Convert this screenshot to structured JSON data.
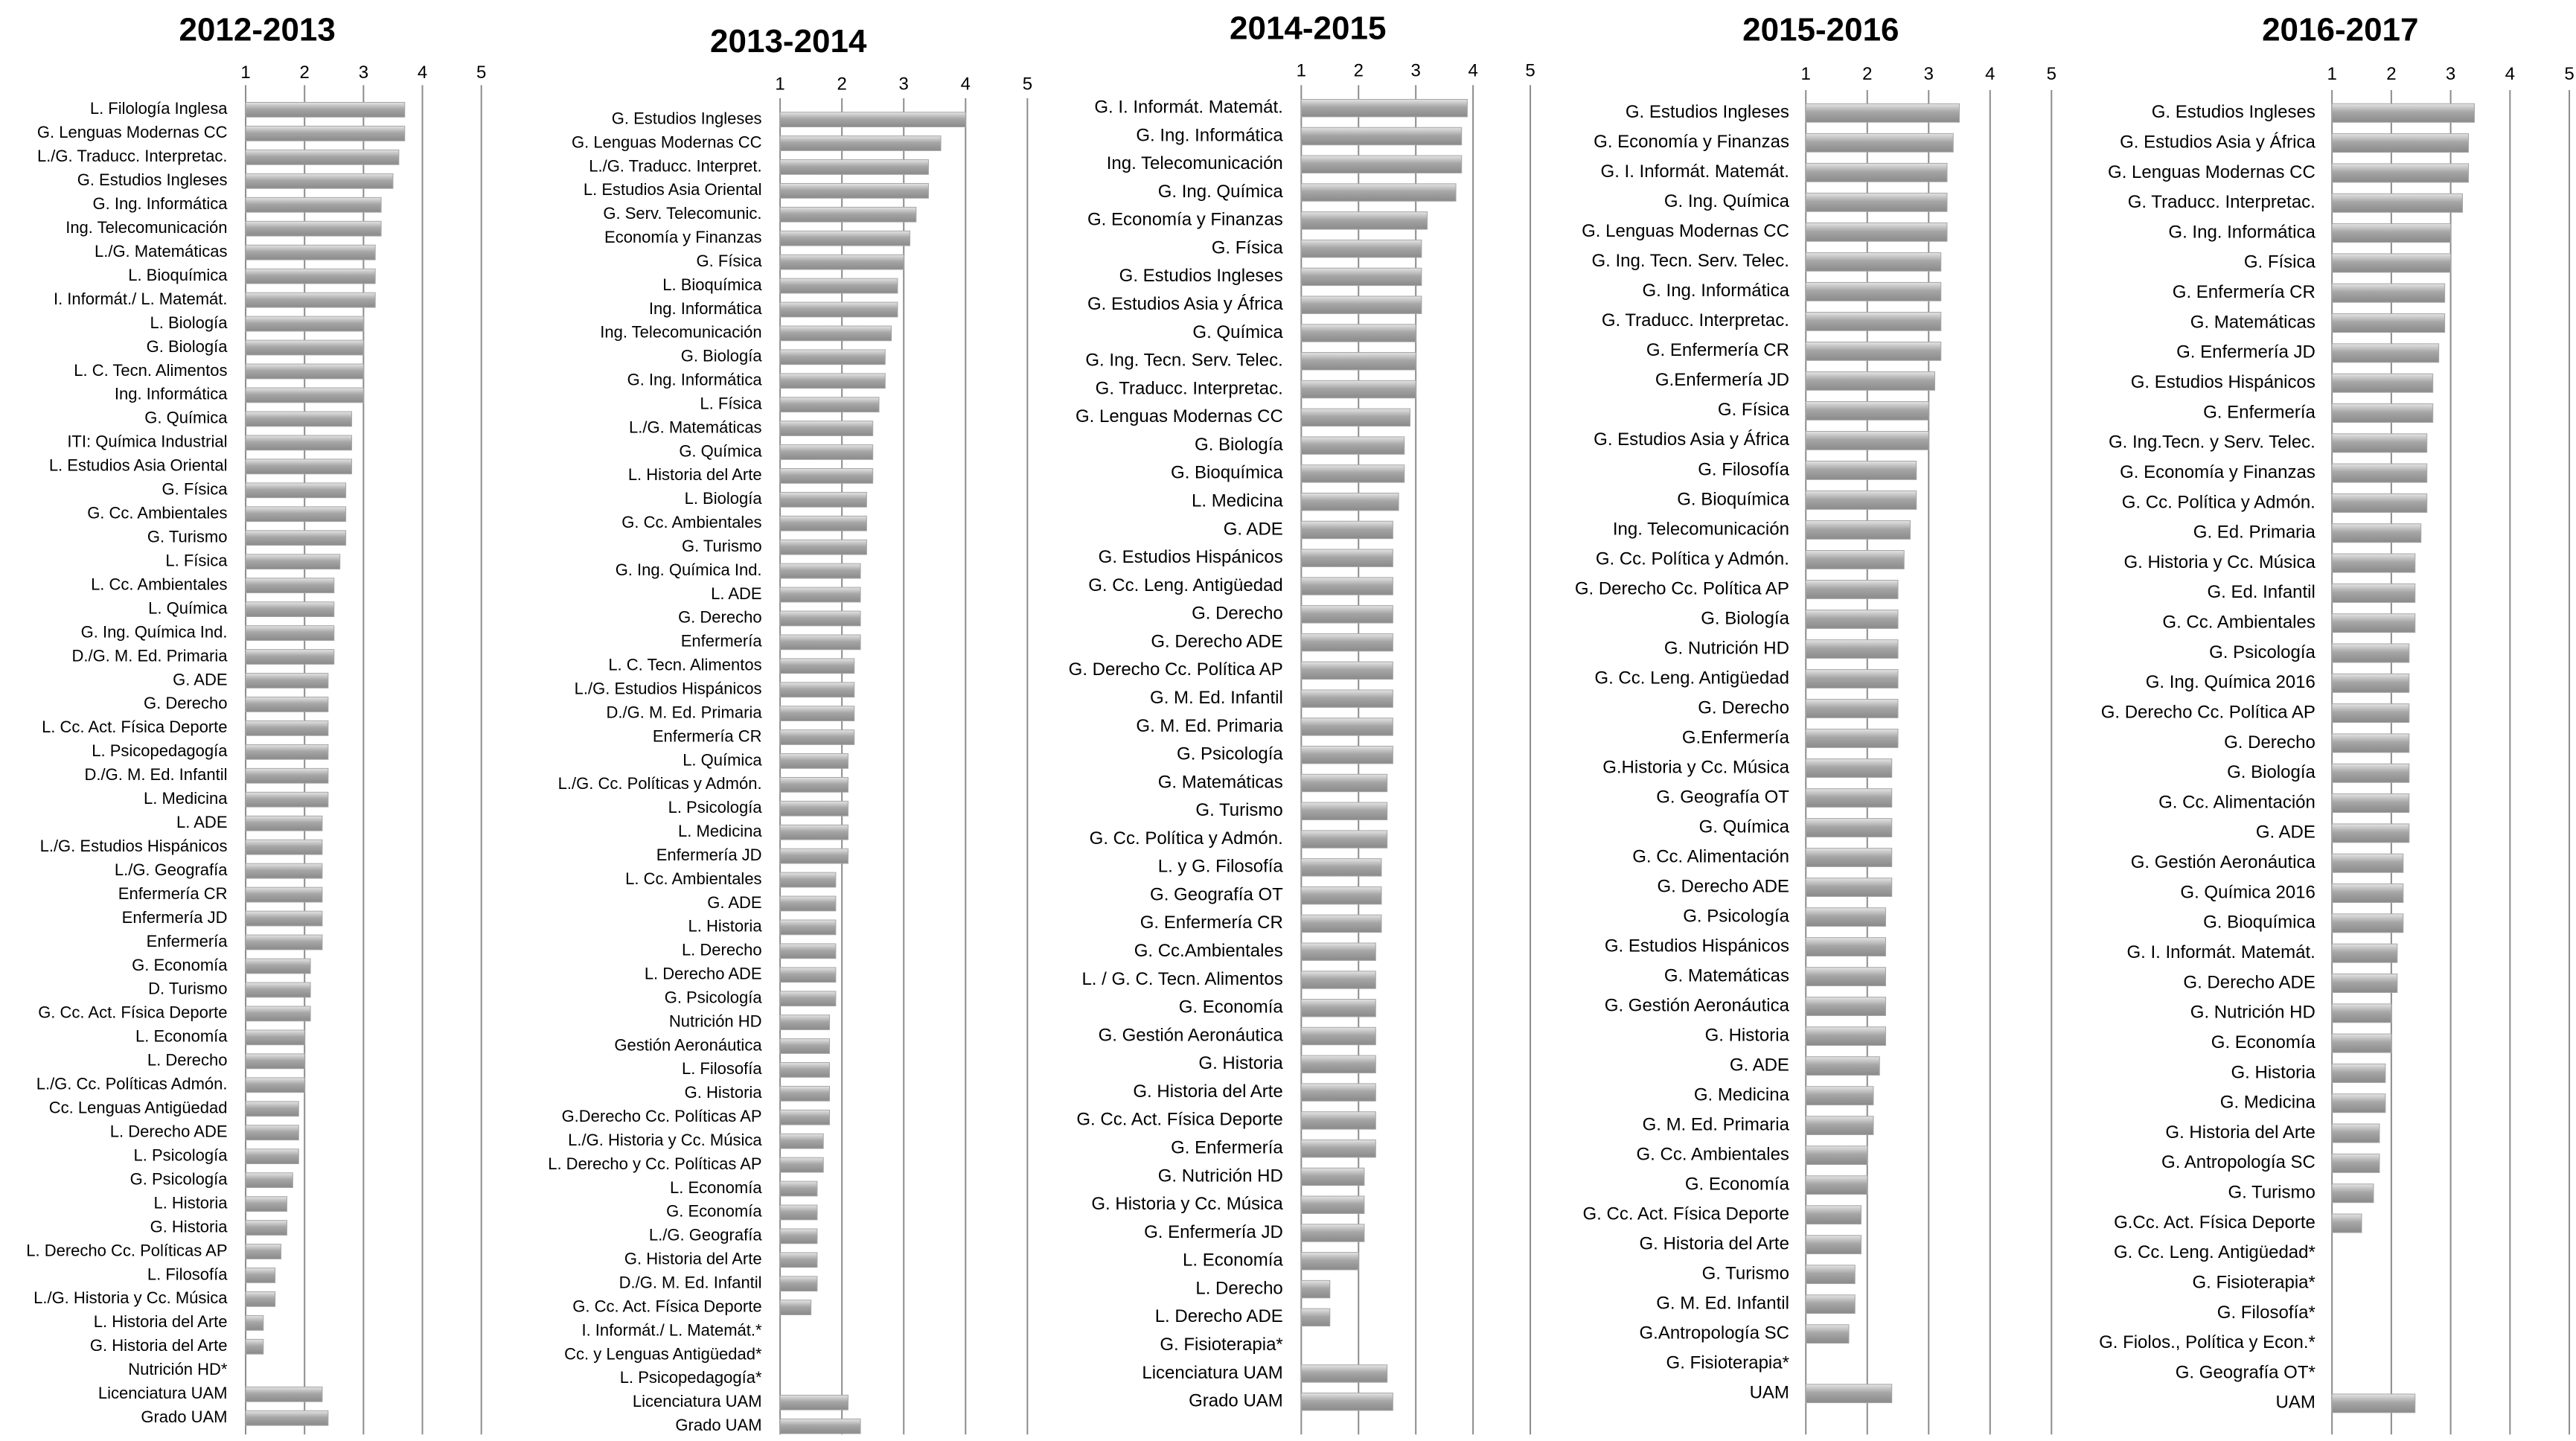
{
  "chart_data": [
    {
      "type": "bar",
      "orientation": "horizontal",
      "title": "2012-2013",
      "color": "#a6a6a6",
      "grid": true,
      "xlim": [
        1,
        5
      ],
      "xticks": [
        1,
        2,
        3,
        4,
        5
      ],
      "categories": [
        "L. Filología Inglesa",
        "G. Lenguas Modernas CC",
        "L./G. Traducc. Interpretac.",
        "G. Estudios Ingleses",
        "G. Ing. Informática",
        "Ing. Telecomunicación",
        "L./G. Matemáticas",
        "L. Bioquímica",
        "I. Informát./ L. Matemát.",
        "L. Biología",
        "G. Biología",
        "L. C. Tecn. Alimentos",
        "Ing. Informática",
        "G. Química",
        "ITI: Química Industrial",
        "L. Estudios Asia Oriental",
        "G. Física",
        "G. Cc. Ambientales",
        "G. Turismo",
        "L. Física",
        "L. Cc. Ambientales",
        "L. Química",
        "G. Ing. Química Ind.",
        "D./G. M. Ed. Primaria",
        "G. ADE",
        "G. Derecho",
        "L. Cc. Act. Física  Deporte",
        "L. Psicopedagogía",
        "D./G. M. Ed. Infantil",
        "L. Medicina",
        "L. ADE",
        "L./G. Estudios Hispánicos",
        "L./G. Geografía",
        "Enfermería CR",
        "Enfermería JD",
        "Enfermería",
        "G. Economía",
        "D. Turismo",
        "G. Cc. Act. Física Deporte",
        "L. Economía",
        "L. Derecho",
        "L./G. Cc. Políticas Admón.",
        "Cc. Lenguas Antigüedad",
        "L. Derecho ADE",
        "L. Psicología",
        "G. Psicología",
        "L. Historia",
        "G. Historia",
        "L. Derecho Cc. Políticas AP",
        "L. Filosofía",
        "L./G. Historia y Cc. Música",
        "L. Historia del Arte",
        "G. Historia del Arte",
        "Nutrición HD*",
        "Licenciatura UAM",
        "Grado UAM"
      ],
      "values": [
        3.7,
        3.7,
        3.6,
        3.5,
        3.3,
        3.3,
        3.2,
        3.2,
        3.2,
        3.0,
        3.0,
        3.0,
        3.0,
        2.8,
        2.8,
        2.8,
        2.7,
        2.7,
        2.7,
        2.6,
        2.5,
        2.5,
        2.5,
        2.5,
        2.4,
        2.4,
        2.4,
        2.4,
        2.4,
        2.4,
        2.3,
        2.3,
        2.3,
        2.3,
        2.3,
        2.3,
        2.1,
        2.1,
        2.1,
        2.0,
        2.0,
        2.0,
        1.9,
        1.9,
        1.9,
        1.8,
        1.7,
        1.7,
        1.6,
        1.5,
        1.5,
        1.3,
        1.3,
        null,
        2.3,
        2.4
      ]
    },
    {
      "type": "bar",
      "orientation": "horizontal",
      "title": "2013-2014",
      "color": "#a6a6a6",
      "grid": true,
      "xlim": [
        1,
        5
      ],
      "xticks": [
        1,
        2,
        3,
        4,
        5
      ],
      "categories": [
        "G. Estudios Ingleses",
        "G. Lenguas Modernas CC",
        "L./G. Traducc. Interpret.",
        "L. Estudios Asia Oriental",
        "G. Serv. Telecomunic.",
        "Economía y Finanzas",
        "G. Física",
        "L. Bioquímica",
        "Ing. Informática",
        "Ing. Telecomunicación",
        "G. Biología",
        "G. Ing. Informática",
        "L. Física",
        "L./G. Matemáticas",
        "G. Química",
        "L. Historia del Arte",
        "L. Biología",
        "G. Cc. Ambientales",
        "G. Turismo",
        "G. Ing. Química Ind.",
        "L. ADE",
        "G. Derecho",
        "Enfermería",
        "L. C. Tecn. Alimentos",
        "L./G. Estudios Hispánicos",
        "D./G. M. Ed. Primaria",
        "Enfermería CR",
        "L. Química",
        "L./G. Cc. Políticas y Admón.",
        "L. Psicología",
        "L. Medicina",
        "Enfermería JD",
        "L. Cc. Ambientales",
        "G. ADE",
        "L. Historia",
        "L. Derecho",
        "L. Derecho ADE",
        "G. Psicología",
        "Nutrición HD",
        "Gestión Aeronáutica",
        "L. Filosofía",
        "G. Historia",
        "G.Derecho Cc. Políticas AP",
        "L./G. Historia y Cc. Música",
        "L. Derecho y Cc. Políticas AP",
        "L. Economía",
        "G. Economía",
        "L./G. Geografía",
        "G. Historia del Arte",
        "D./G. M. Ed. Infantil",
        "G. Cc. Act. Física Deporte",
        "I. Informát./ L. Matemát.*",
        "Cc. y Lenguas Antigüedad*",
        "L. Psicopedagogía*",
        "Licenciatura UAM",
        "Grado UAM"
      ],
      "values": [
        4.0,
        3.6,
        3.4,
        3.4,
        3.2,
        3.1,
        3.0,
        2.9,
        2.9,
        2.8,
        2.7,
        2.7,
        2.6,
        2.5,
        2.5,
        2.5,
        2.4,
        2.4,
        2.4,
        2.3,
        2.3,
        2.3,
        2.3,
        2.2,
        2.2,
        2.2,
        2.2,
        2.1,
        2.1,
        2.1,
        2.1,
        2.1,
        1.9,
        1.9,
        1.9,
        1.9,
        1.9,
        1.9,
        1.8,
        1.8,
        1.8,
        1.8,
        1.8,
        1.7,
        1.7,
        1.6,
        1.6,
        1.6,
        1.6,
        1.6,
        1.5,
        null,
        null,
        null,
        2.1,
        2.3
      ]
    },
    {
      "type": "bar",
      "orientation": "horizontal",
      "title": "2014-2015",
      "color": "#a6a6a6",
      "grid": true,
      "xlim": [
        1,
        5
      ],
      "xticks": [
        1,
        2,
        3,
        4,
        5
      ],
      "categories": [
        "G. I. Informát. Matemát.",
        "G. Ing. Informática",
        "Ing. Telecomunicación",
        "G. Ing. Química",
        "G. Economía y Finanzas",
        "G. Física",
        "G. Estudios Ingleses",
        "G. Estudios Asia y África",
        "G. Química",
        "G. Ing. Tecn. Serv. Telec.",
        "G. Traducc. Interpretac.",
        "G. Lenguas Modernas CC",
        "G. Biología",
        "G. Bioquímica",
        "L. Medicina",
        "G. ADE",
        "G. Estudios Hispánicos",
        "G. Cc. Leng. Antigüedad",
        "G. Derecho",
        "G. Derecho ADE",
        "G. Derecho Cc. Política AP",
        "G. M. Ed. Infantil",
        "G. M. Ed. Primaria",
        "G. Psicología",
        "G. Matemáticas",
        "G. Turismo",
        "G. Cc. Política y Admón.",
        "L. y G. Filosofía",
        "G. Geografía OT",
        "G. Enfermería CR",
        "G. Cc.Ambientales",
        "L. / G. C. Tecn. Alimentos",
        "G. Economía",
        "G. Gestión Aeronáutica",
        "G. Historia",
        "G. Historia del Arte",
        "G. Cc. Act. Física Deporte",
        "G. Enfermería",
        "G. Nutrición HD",
        "G. Historia y Cc. Música",
        "G. Enfermería JD",
        "L. Economía",
        "L. Derecho",
        "L. Derecho ADE",
        "G. Fisioterapia*",
        "Licenciatura UAM",
        "Grado UAM"
      ],
      "values": [
        3.9,
        3.8,
        3.8,
        3.7,
        3.2,
        3.1,
        3.1,
        3.1,
        3.0,
        3.0,
        3.0,
        2.9,
        2.8,
        2.8,
        2.7,
        2.6,
        2.6,
        2.6,
        2.6,
        2.6,
        2.6,
        2.6,
        2.6,
        2.6,
        2.5,
        2.5,
        2.5,
        2.4,
        2.4,
        2.4,
        2.3,
        2.3,
        2.3,
        2.3,
        2.3,
        2.3,
        2.3,
        2.3,
        2.1,
        2.1,
        2.1,
        2.0,
        1.5,
        1.5,
        null,
        2.5,
        2.6
      ]
    },
    {
      "type": "bar",
      "orientation": "horizontal",
      "title": "2015-2016",
      "color": "#a6a6a6",
      "grid": true,
      "xlim": [
        1,
        5
      ],
      "xticks": [
        1,
        2,
        3,
        4,
        5
      ],
      "categories": [
        "G. Estudios Ingleses",
        "G. Economía y Finanzas",
        "G. I. Informát. Matemát.",
        "G. Ing. Química",
        "G. Lenguas Modernas CC",
        "G. Ing. Tecn. Serv. Telec.",
        "G. Ing. Informática",
        "G. Traducc. Interpretac.",
        "G. Enfermería CR",
        "G.Enfermería JD",
        "G. Física",
        "G. Estudios Asia y África",
        "G. Filosofía",
        "G. Bioquímica",
        "Ing. Telecomunicación",
        "G. Cc. Política y Admón.",
        "G. Derecho Cc. Política AP",
        "G. Biología",
        "G. Nutrición HD",
        "G. Cc. Leng. Antigüedad",
        "G. Derecho",
        "G.Enfermería",
        "G.Historia y Cc. Música",
        "G. Geografía OT",
        "G. Química",
        "G. Cc. Alimentación",
        "G. Derecho ADE",
        "G. Psicología",
        "G. Estudios Hispánicos",
        "G. Matemáticas",
        "G. Gestión Aeronáutica",
        "G. Historia",
        "G. ADE",
        "G. Medicina",
        "G. M. Ed. Primaria",
        "G. Cc. Ambientales",
        "G. Economía",
        "G. Cc. Act. Física Deporte",
        "G. Historia del Arte",
        "G. Turismo",
        "G. M. Ed. Infantil",
        "G.Antropología SC",
        "G. Fisioterapia*",
        "UAM"
      ],
      "values": [
        3.5,
        3.4,
        3.3,
        3.3,
        3.3,
        3.2,
        3.2,
        3.2,
        3.2,
        3.1,
        3.0,
        3.0,
        2.8,
        2.8,
        2.7,
        2.6,
        2.5,
        2.5,
        2.5,
        2.5,
        2.5,
        2.5,
        2.4,
        2.4,
        2.4,
        2.4,
        2.4,
        2.3,
        2.3,
        2.3,
        2.3,
        2.3,
        2.2,
        2.1,
        2.1,
        2.0,
        2.0,
        1.9,
        1.9,
        1.8,
        1.8,
        1.7,
        null,
        2.4
      ]
    },
    {
      "type": "bar",
      "orientation": "horizontal",
      "title": "2016-2017",
      "color": "#a6a6a6",
      "grid": true,
      "xlim": [
        1,
        5
      ],
      "xticks": [
        1,
        2,
        3,
        4,
        5
      ],
      "categories": [
        "G. Estudios Ingleses",
        "G. Estudios Asia y África",
        "G. Lenguas Modernas CC",
        "G. Traducc. Interpretac.",
        "G. Ing. Informática",
        "G. Física",
        "G. Enfermería CR",
        "G. Matemáticas",
        "G. Enfermería JD",
        "G. Estudios Hispánicos",
        "G. Enfermería",
        "G. Ing.Tecn. y Serv. Telec.",
        "G. Economía y Finanzas",
        "G. Cc. Política y Admón.",
        "G. Ed. Primaria",
        "G. Historia y Cc. Música",
        "G. Ed. Infantil",
        "G. Cc. Ambientales",
        "G. Psicología",
        "G. Ing. Química 2016",
        "G. Derecho Cc. Política AP",
        "G. Derecho",
        "G. Biología",
        "G. Cc. Alimentación",
        "G. ADE",
        "G. Gestión Aeronáutica",
        "G. Química 2016",
        "G. Bioquímica",
        "G. I. Informát. Matemát.",
        "G. Derecho ADE",
        "G. Nutrición HD",
        "G. Economía",
        "G. Historia",
        "G. Medicina",
        "G. Historia del Arte",
        "G. Antropología SC",
        "G. Turismo",
        "G.Cc. Act. Física Deporte",
        "G. Cc. Leng. Antigüedad*",
        "G. Fisioterapia*",
        "G. Filosofía*",
        "G. Fiolos., Política y Econ.*",
        "G. Geografía OT*",
        "UAM"
      ],
      "values": [
        3.4,
        3.3,
        3.3,
        3.2,
        3.0,
        3.0,
        2.9,
        2.9,
        2.8,
        2.7,
        2.7,
        2.6,
        2.6,
        2.6,
        2.5,
        2.4,
        2.4,
        2.4,
        2.3,
        2.3,
        2.3,
        2.3,
        2.3,
        2.3,
        2.3,
        2.2,
        2.2,
        2.2,
        2.1,
        2.1,
        2.0,
        2.0,
        1.9,
        1.9,
        1.8,
        1.8,
        1.7,
        1.5,
        null,
        null,
        null,
        null,
        null,
        2.4
      ]
    }
  ]
}
